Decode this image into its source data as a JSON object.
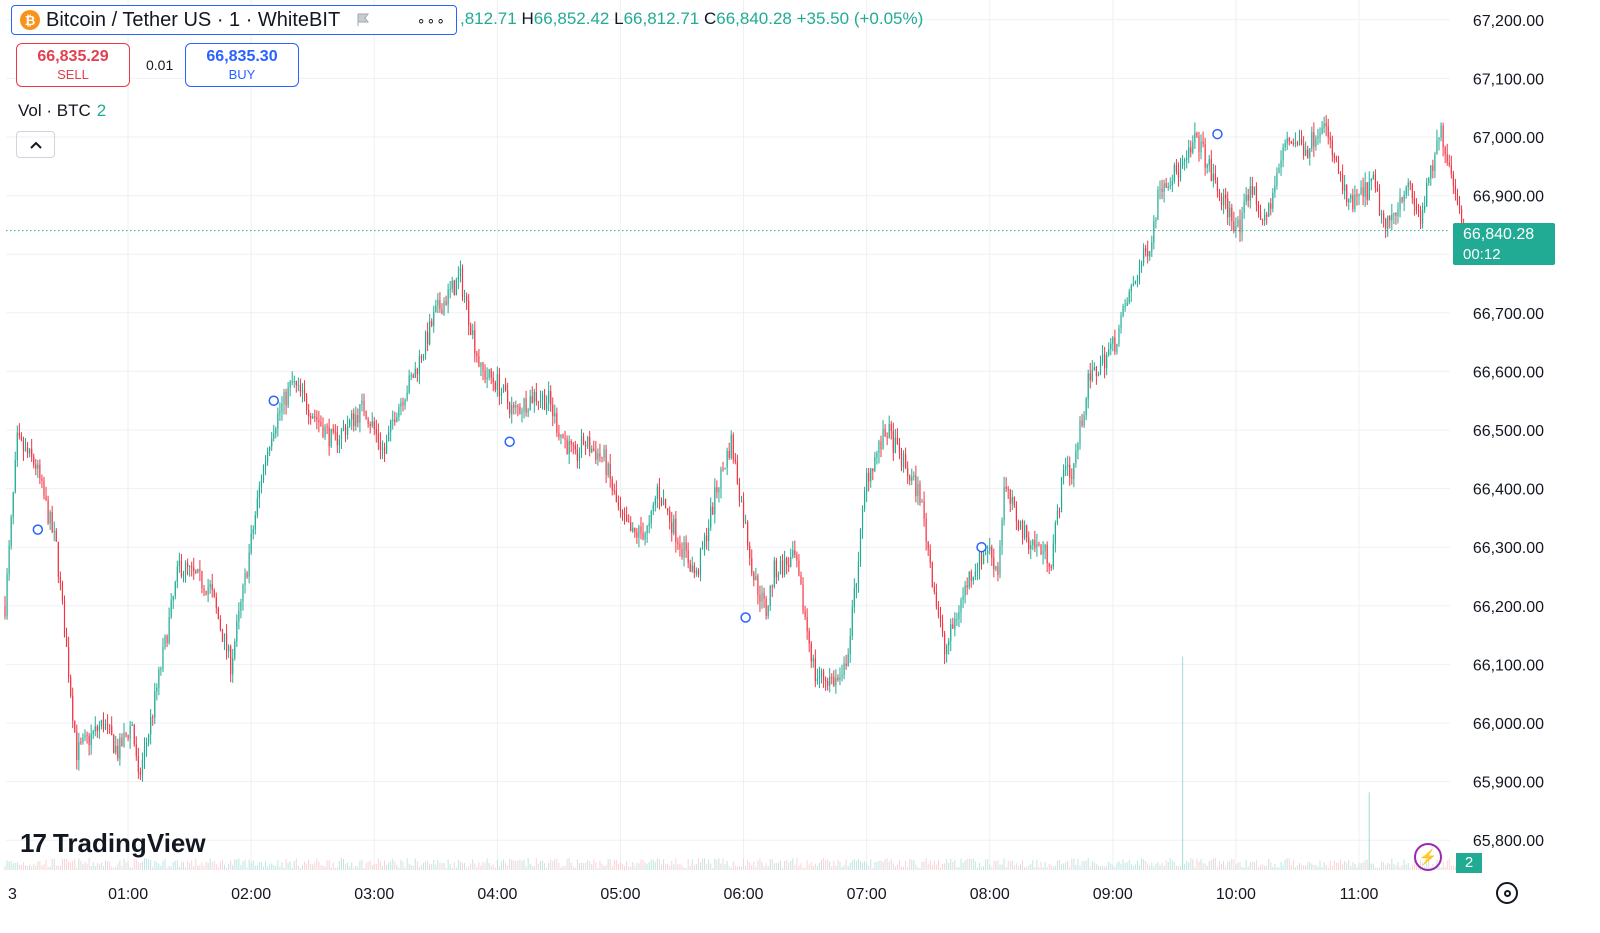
{
  "header": {
    "coin_letter": "₿",
    "symbol_title": "Bitcoin / Tether US · 1 · WhiteBIT",
    "more_label": "∘∘∘"
  },
  "ohlc": {
    "o_value": ",812.71",
    "h_key": "H",
    "h_value": "66,852.42",
    "l_key": "L",
    "l_value": "66,812.71",
    "c_key": "C",
    "c_value": "66,840.28",
    "change": "+35.50 (+0.05%)"
  },
  "trade": {
    "sell_price": "66,835.29",
    "sell_label": "SELL",
    "spread": "0.01",
    "buy_price": "66,835.30",
    "buy_label": "BUY"
  },
  "volume_legend": {
    "label": "Vol · BTC",
    "value": "2"
  },
  "logo": {
    "mark": "17",
    "text": "TradingView"
  },
  "last_price": {
    "price": "66,840.28",
    "countdown": "00:12"
  },
  "volume_tag": "2",
  "bolt_icon": "⚡",
  "colors": {
    "up": "#22ab94",
    "down": "#f23645",
    "grid": "#eef0f3",
    "accent": "#2962ff"
  },
  "chart_data": {
    "type": "candlestick",
    "x_tick_labels": [
      "3",
      "01:00",
      "02:00",
      "03:00",
      "04:00",
      "05:00",
      "06:00",
      "07:00",
      "08:00",
      "09:00",
      "10:00",
      "11:00"
    ],
    "x_tick_minutes": [
      0,
      60,
      120,
      180,
      240,
      300,
      360,
      420,
      480,
      540,
      600,
      660
    ],
    "y_tick_values": [
      65800,
      65900,
      66000,
      66100,
      66200,
      66300,
      66400,
      66500,
      66600,
      66700,
      66800,
      66900,
      67000,
      67100,
      67200
    ],
    "y_tick_labels": [
      "65,800.00",
      "65,900.00",
      "66,000.00",
      "66,100.00",
      "66,200.00",
      "66,300.00",
      "66,400.00",
      "66,500.00",
      "66,600.00",
      "66,700.00",
      "66,800.00",
      "66,900.00",
      "67,000.00",
      "67,100.00",
      "67,200.00"
    ],
    "ylim": [
      65750,
      67235
    ],
    "xlim_minutes": [
      0,
      715
    ],
    "last_price": 66840.28,
    "path_minutes": [
      0,
      6,
      15,
      25,
      35,
      48,
      55,
      62,
      65,
      72,
      85,
      100,
      110,
      115,
      125,
      130,
      140,
      148,
      160,
      175,
      185,
      190,
      200,
      210,
      222,
      232,
      240,
      248,
      258,
      265,
      270,
      278,
      282,
      292,
      300,
      306,
      314,
      318,
      330,
      337,
      347,
      354,
      365,
      371,
      375,
      385,
      395,
      408,
      412,
      420,
      430,
      441,
      446,
      452,
      458,
      470,
      479,
      484,
      487,
      497,
      510,
      517,
      520,
      528,
      541,
      547,
      559,
      563,
      575,
      581,
      592,
      602,
      607,
      614,
      625,
      635,
      642,
      655,
      667,
      673,
      683,
      690,
      700,
      708,
      710
    ],
    "path_prices": [
      66200,
      66480,
      66440,
      66300,
      65950,
      66000,
      65950,
      66000,
      65900,
      66020,
      66270,
      66230,
      66100,
      66200,
      66420,
      66500,
      66580,
      66540,
      66480,
      66540,
      66460,
      66530,
      66600,
      66700,
      66760,
      66600,
      66580,
      66530,
      66560,
      66550,
      66500,
      66450,
      66480,
      66450,
      66350,
      66320,
      66330,
      66400,
      66300,
      66250,
      66400,
      66480,
      66250,
      66190,
      66260,
      66280,
      66080,
      66070,
      66150,
      66420,
      66500,
      66420,
      66390,
      66250,
      66120,
      66250,
      66300,
      66260,
      66400,
      66320,
      66280,
      66450,
      66420,
      66580,
      66650,
      66720,
      66830,
      66920,
      66950,
      67000,
      66900,
      66840,
      66920,
      66850,
      67000,
      66980,
      67030,
      66880,
      66920,
      66840,
      66920,
      66860,
      67010,
      66900,
      66840
    ],
    "markers": [
      {
        "minute": 16,
        "price": 66330
      },
      {
        "minute": 131,
        "price": 66550
      },
      {
        "minute": 246,
        "price": 66480
      },
      {
        "minute": 361,
        "price": 66180
      },
      {
        "minute": 476,
        "price": 66300
      },
      {
        "minute": 591,
        "price": 67005
      }
    ],
    "volume_spikes": [
      {
        "minute": 574,
        "value": 2.2
      },
      {
        "minute": 665,
        "value": 0.8
      }
    ]
  }
}
